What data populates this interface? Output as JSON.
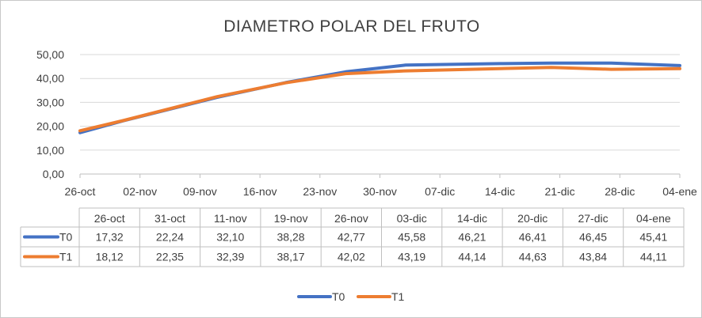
{
  "chart_data": {
    "type": "line",
    "title": "DIAMETRO POLAR DEL FRUTO",
    "xlabel": "",
    "ylabel": "",
    "ylim": [
      0,
      50
    ],
    "y_ticks": [
      "0,00",
      "10,00",
      "20,00",
      "30,00",
      "40,00",
      "50,00"
    ],
    "x_tick_labels": [
      "26-oct",
      "02-nov",
      "09-nov",
      "16-nov",
      "23-nov",
      "30-nov",
      "07-dic",
      "14-dic",
      "21-dic",
      "28-dic",
      "04-ene"
    ],
    "x": [
      "2019-10-26",
      "2019-10-31",
      "2019-11-11",
      "2019-11-19",
      "2019-11-26",
      "2019-12-03",
      "2019-12-14",
      "2019-12-20",
      "2019-12-27",
      "2020-01-04"
    ],
    "grid": true,
    "legend_position": "bottom",
    "table": {
      "header": [
        "26-oct",
        "31-oct",
        "11-nov",
        "19-nov",
        "26-nov",
        "03-dic",
        "14-dic",
        "20-dic",
        "27-dic",
        "04-ene"
      ]
    },
    "series": [
      {
        "name": "T0",
        "color": "#4472C4",
        "values": [
          17.32,
          22.24,
          32.1,
          38.28,
          42.77,
          45.58,
          46.21,
          46.41,
          46.45,
          45.41
        ],
        "labels": [
          "17,32",
          "22,24",
          "32,10",
          "38,28",
          "42,77",
          "45,58",
          "46,21",
          "46,41",
          "46,45",
          "45,41"
        ]
      },
      {
        "name": "T1",
        "color": "#ED7D31",
        "values": [
          18.12,
          22.35,
          32.39,
          38.17,
          42.02,
          43.19,
          44.14,
          44.63,
          43.84,
          44.11
        ],
        "labels": [
          "18,12",
          "22,35",
          "32,39",
          "38,17",
          "42,02",
          "43,19",
          "44,14",
          "44,63",
          "43,84",
          "44,11"
        ]
      }
    ]
  }
}
